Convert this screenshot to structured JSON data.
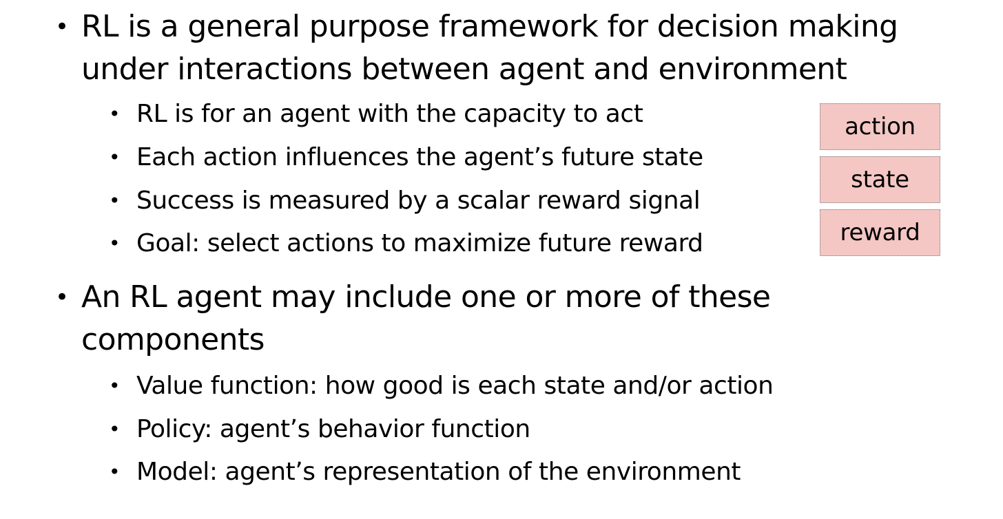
{
  "section1": {
    "bullet_glyph": "•",
    "heading_line1": "RL is a general purpose framework for decision making",
    "heading_line2": "under interactions between agent and environment",
    "items": [
      "RL is for an agent with the capacity to act",
      "Each action influences the agent’s future state",
      "Success is measured by a scalar reward signal",
      "Goal: select actions to maximize future reward"
    ]
  },
  "tags": [
    "action",
    "state",
    "reward"
  ],
  "section2": {
    "bullet_glyph": "•",
    "heading_line1": "An RL agent may include one or more of these",
    "heading_line2": "components",
    "items": [
      "Value function: how good is each state and/or action",
      "Policy: agent’s behavior function",
      "Model: agent’s representation of the environment"
    ]
  },
  "colors": {
    "tag_fill": "#f4c7c4",
    "tag_border": "#7a7a7a",
    "text": "#000000",
    "background": "#ffffff"
  }
}
